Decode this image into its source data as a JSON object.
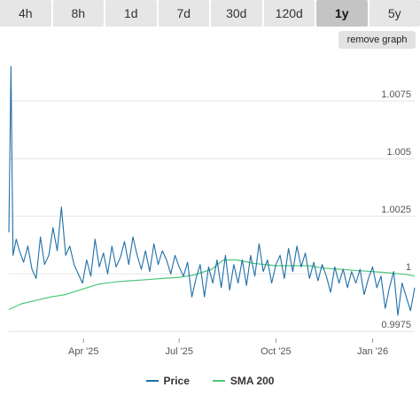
{
  "timeframes": {
    "tabs": [
      {
        "label": "4h",
        "active": false
      },
      {
        "label": "8h",
        "active": false
      },
      {
        "label": "1d",
        "active": false
      },
      {
        "label": "7d",
        "active": false
      },
      {
        "label": "30d",
        "active": false
      },
      {
        "label": "120d",
        "active": false
      },
      {
        "label": "1y",
        "active": true
      },
      {
        "label": "5y",
        "active": false
      }
    ]
  },
  "controls": {
    "remove_graph_label": "remove graph"
  },
  "colors": {
    "price": "#1f6fa8",
    "sma": "#4cc77a",
    "grid": "#e4e4e4",
    "active_tab": "#c4c4c4",
    "tab": "#e6e6e6"
  },
  "chart_data": {
    "type": "line",
    "x_axis": {
      "type": "date",
      "range": [
        "2025-01-20",
        "2026-02-10"
      ],
      "ticks": [
        {
          "date": "2025-04-01",
          "label": "Apr '25"
        },
        {
          "date": "2025-07-01",
          "label": "Jul '25"
        },
        {
          "date": "2025-10-01",
          "label": "Oct '25"
        },
        {
          "date": "2026-01-01",
          "label": "Jan '26"
        }
      ]
    },
    "y_axis": {
      "position": "right",
      "range": [
        0.9972,
        1.0095
      ],
      "grid": true,
      "ticks": [
        {
          "value": 0.9975,
          "label": "0.9975"
        },
        {
          "value": 1.0,
          "label": "1"
        },
        {
          "value": 1.0025,
          "label": "1.0025"
        },
        {
          "value": 1.005,
          "label": "1.005"
        },
        {
          "value": 1.0075,
          "label": "1.0075"
        }
      ]
    },
    "legend": {
      "position": "bottom-center"
    },
    "series": [
      {
        "name": "Price",
        "x": [
          "2025-01-20",
          "2025-01-22",
          "2025-01-23",
          "2025-01-24",
          "2025-01-27",
          "2025-01-30",
          "2025-02-03",
          "2025-02-07",
          "2025-02-11",
          "2025-02-15",
          "2025-02-19",
          "2025-02-23",
          "2025-02-27",
          "2025-03-03",
          "2025-03-07",
          "2025-03-11",
          "2025-03-15",
          "2025-03-19",
          "2025-03-23",
          "2025-03-27",
          "2025-03-31",
          "2025-04-04",
          "2025-04-08",
          "2025-04-12",
          "2025-04-16",
          "2025-04-20",
          "2025-04-24",
          "2025-04-28",
          "2025-05-02",
          "2025-05-06",
          "2025-05-10",
          "2025-05-14",
          "2025-05-18",
          "2025-05-22",
          "2025-05-26",
          "2025-05-30",
          "2025-06-03",
          "2025-06-07",
          "2025-06-11",
          "2025-06-15",
          "2025-06-19",
          "2025-06-23",
          "2025-06-27",
          "2025-07-01",
          "2025-07-05",
          "2025-07-09",
          "2025-07-13",
          "2025-07-17",
          "2025-07-21",
          "2025-07-25",
          "2025-07-29",
          "2025-08-02",
          "2025-08-06",
          "2025-08-10",
          "2025-08-14",
          "2025-08-18",
          "2025-08-22",
          "2025-08-26",
          "2025-08-30",
          "2025-09-03",
          "2025-09-07",
          "2025-09-11",
          "2025-09-15",
          "2025-09-19",
          "2025-09-23",
          "2025-09-27",
          "2025-10-01",
          "2025-10-05",
          "2025-10-09",
          "2025-10-13",
          "2025-10-17",
          "2025-10-21",
          "2025-10-25",
          "2025-10-29",
          "2025-11-02",
          "2025-11-06",
          "2025-11-10",
          "2025-11-14",
          "2025-11-18",
          "2025-11-22",
          "2025-11-26",
          "2025-11-30",
          "2025-12-04",
          "2025-12-08",
          "2025-12-12",
          "2025-12-16",
          "2025-12-20",
          "2025-12-24",
          "2025-12-28",
          "2026-01-01",
          "2026-01-05",
          "2026-01-09",
          "2026-01-13",
          "2026-01-17",
          "2026-01-21",
          "2026-01-25",
          "2026-01-29",
          "2026-02-02",
          "2026-02-06",
          "2026-02-10"
        ],
        "values": [
          1.0018,
          1.009,
          1.0045,
          1.0008,
          1.0015,
          1.001,
          1.0005,
          1.0012,
          1.0002,
          0.9998,
          1.0016,
          1.0004,
          1.0008,
          1.002,
          1.001,
          1.0029,
          1.0008,
          1.0012,
          1.0004,
          1.0,
          0.9996,
          1.0006,
          0.9999,
          1.0015,
          1.0003,
          1.0009,
          1.0,
          1.0012,
          1.0003,
          1.0007,
          1.0014,
          1.0004,
          1.0016,
          1.0008,
          1.0002,
          1.001,
          1.0001,
          1.0013,
          1.0004,
          1.001,
          1.0006,
          1.0,
          1.0008,
          1.0003,
          0.9999,
          1.0005,
          0.999,
          0.9998,
          1.0004,
          0.999,
          1.0003,
          0.9996,
          1.0006,
          0.9994,
          1.0008,
          0.9993,
          1.0004,
          0.9996,
          1.0006,
          0.9995,
          1.0008,
          0.9999,
          1.0013,
          1.0001,
          1.0006,
          0.9996,
          1.0004,
          1.0008,
          0.9998,
          1.0011,
          1.0001,
          1.0012,
          1.0003,
          1.0009,
          0.9998,
          1.0005,
          0.9997,
          1.0004,
          0.9999,
          0.9992,
          1.0003,
          0.9996,
          1.0002,
          0.9994,
          1.0001,
          0.9996,
          1.0002,
          0.9991,
          0.9998,
          1.0003,
          0.9994,
          0.9999,
          0.9985,
          0.9994,
          1.0001,
          0.9982,
          0.9996,
          0.999,
          0.9984,
          0.9994
        ]
      },
      {
        "name": "SMA 200",
        "x": [
          "2025-01-20",
          "2025-02-01",
          "2025-02-15",
          "2025-03-01",
          "2025-03-15",
          "2025-04-01",
          "2025-04-15",
          "2025-05-01",
          "2025-05-15",
          "2025-06-01",
          "2025-06-15",
          "2025-07-01",
          "2025-07-15",
          "2025-08-01",
          "2025-08-12",
          "2025-08-25",
          "2025-09-10",
          "2025-10-01",
          "2025-10-15",
          "2025-11-01",
          "2025-11-15",
          "2025-12-01",
          "2025-12-15",
          "2026-01-01",
          "2026-01-15",
          "2026-02-01",
          "2026-02-10"
        ],
        "values": [
          0.99845,
          0.9987,
          0.99885,
          0.999,
          0.9991,
          0.99935,
          0.99955,
          0.99965,
          0.9997,
          0.99975,
          0.9998,
          0.99985,
          0.99995,
          1.0002,
          1.0006,
          1.0006,
          1.00045,
          1.00035,
          1.00035,
          1.00035,
          1.00025,
          1.0002,
          1.00015,
          1.0001,
          1.00005,
          0.99998,
          0.9999
        ]
      }
    ]
  },
  "legend_items": [
    {
      "label": "Price"
    },
    {
      "label": "SMA 200"
    }
  ]
}
